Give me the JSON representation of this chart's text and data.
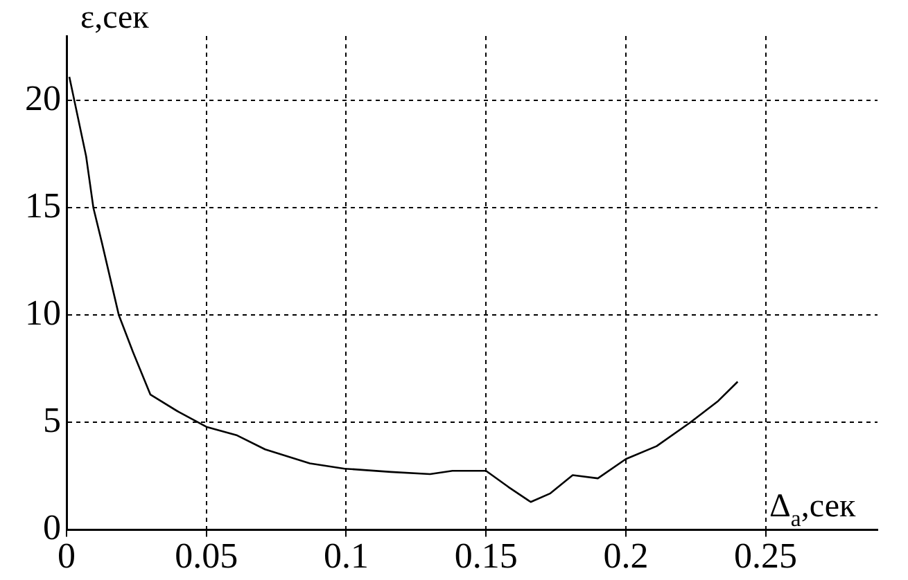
{
  "chart_data": {
    "type": "line",
    "xlabel": "Δ$_{a}$,сек",
    "ylabel": "ε,сек",
    "x": [
      0.001,
      0.007,
      0.0096,
      0.0126,
      0.0187,
      0.0237,
      0.03,
      0.04,
      0.05,
      0.061,
      0.071,
      0.087,
      0.0995,
      0.116,
      0.13,
      0.138,
      0.15,
      0.158,
      0.166,
      0.173,
      0.181,
      0.19,
      0.2,
      0.211,
      0.223,
      0.233,
      0.24
    ],
    "series": [
      {
        "color": "#000000",
        "values": [
          21.1,
          17.4,
          15,
          13.4,
          10,
          8.3,
          6.3,
          5.5,
          4.8,
          4.4,
          3.75,
          3.1,
          2.85,
          2.7,
          2.6,
          2.75,
          2.75,
          2.0,
          1.3,
          1.7,
          2.55,
          2.4,
          3.3,
          3.9,
          5.0,
          6.0,
          6.9
        ]
      }
    ],
    "xlim": [
      0,
      0.29
    ],
    "xticks": [
      0,
      0.05,
      0.1,
      0.15,
      0.2,
      0.25
    ],
    "ylim": [
      0,
      23
    ],
    "yticks": [
      0,
      5,
      10,
      15,
      20
    ],
    "grid": true,
    "legend": false,
    "marker": "none",
    "line_style": "solid"
  }
}
